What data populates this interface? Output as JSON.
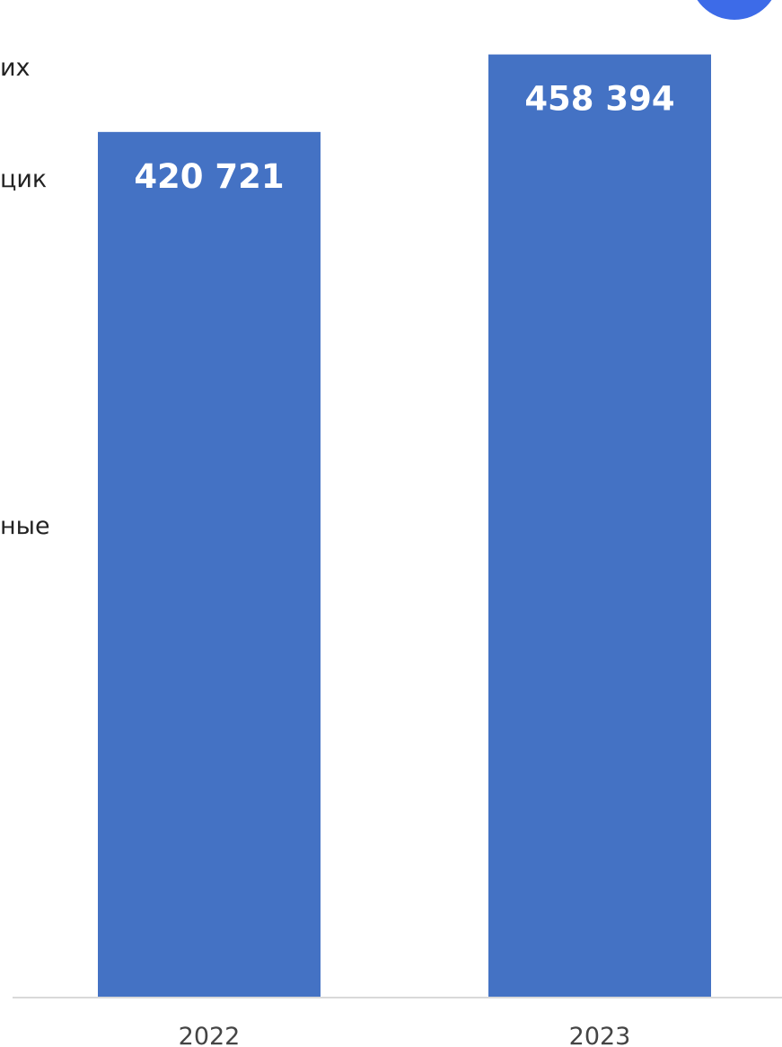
{
  "left_text_fragments": [
    "их",
    "цик",
    "ные"
  ],
  "colors": {
    "bar": "#4472C4",
    "badge": "#3D6BE8",
    "axis": "#D9D9D9"
  },
  "chart_data": {
    "type": "bar",
    "categories": [
      "2022",
      "2023"
    ],
    "values": [
      420721,
      458394
    ],
    "value_labels": [
      "420 721",
      "458 394"
    ],
    "title": "",
    "xlabel": "",
    "ylabel": "",
    "ylim": [
      0,
      470000
    ],
    "grid": false,
    "legend": "none"
  }
}
